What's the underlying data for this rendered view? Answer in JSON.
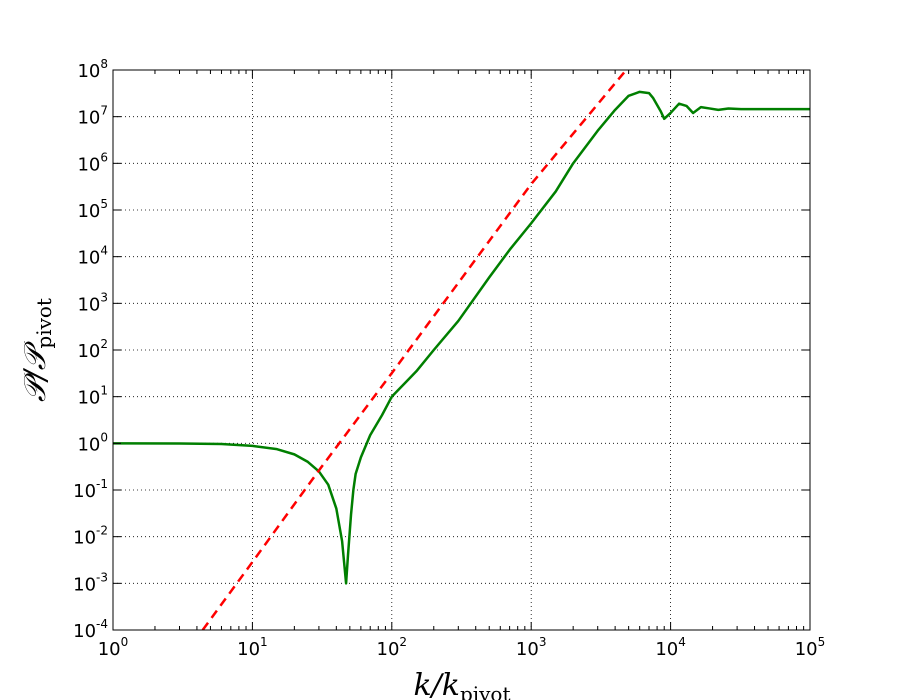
{
  "chart_data": {
    "type": "line",
    "title": "",
    "xlabel": {
      "main": "k/k",
      "sub": "pivot"
    },
    "ylabel": {
      "main": "𝒫/𝒫",
      "sub": "pivot"
    },
    "xscale": "log",
    "yscale": "log",
    "xlim": [
      1,
      100000
    ],
    "ylim": [
      0.0001,
      100000000
    ],
    "grid": true,
    "legend": "none",
    "x_ticks": [
      {
        "base": "10",
        "exp": "0",
        "value": 1
      },
      {
        "base": "10",
        "exp": "1",
        "value": 10
      },
      {
        "base": "10",
        "exp": "2",
        "value": 100
      },
      {
        "base": "10",
        "exp": "3",
        "value": 1000
      },
      {
        "base": "10",
        "exp": "4",
        "value": 10000
      },
      {
        "base": "10",
        "exp": "5",
        "value": 100000
      }
    ],
    "y_ticks": [
      {
        "base": "10",
        "exp": "-4",
        "value": 0.0001
      },
      {
        "base": "10",
        "exp": "-3",
        "value": 0.001
      },
      {
        "base": "10",
        "exp": "-2",
        "value": 0.01
      },
      {
        "base": "10",
        "exp": "-1",
        "value": 0.1
      },
      {
        "base": "10",
        "exp": "0",
        "value": 1
      },
      {
        "base": "10",
        "exp": "1",
        "value": 10
      },
      {
        "base": "10",
        "exp": "2",
        "value": 100
      },
      {
        "base": "10",
        "exp": "3",
        "value": 1000
      },
      {
        "base": "10",
        "exp": "4",
        "value": 10000
      },
      {
        "base": "10",
        "exp": "5",
        "value": 100000
      },
      {
        "base": "10",
        "exp": "6",
        "value": 1000000
      },
      {
        "base": "10",
        "exp": "7",
        "value": 10000000
      },
      {
        "base": "10",
        "exp": "8",
        "value": 100000000
      }
    ],
    "series": [
      {
        "color": "#007f00",
        "style": "solid",
        "points": [
          [
            1,
            1.0
          ],
          [
            3,
            0.99
          ],
          [
            6,
            0.97
          ],
          [
            10,
            0.88
          ],
          [
            15,
            0.75
          ],
          [
            20,
            0.58
          ],
          [
            25,
            0.4
          ],
          [
            30,
            0.25
          ],
          [
            35,
            0.13
          ],
          [
            40,
            0.04
          ],
          [
            44,
            0.008
          ],
          [
            47,
            0.001
          ],
          [
            48.5,
            0.004
          ],
          [
            51,
            0.03
          ],
          [
            53,
            0.1
          ],
          [
            55,
            0.22
          ],
          [
            60,
            0.5
          ],
          [
            70,
            1.5
          ],
          [
            85,
            4
          ],
          [
            100,
            10
          ],
          [
            150,
            35
          ],
          [
            200,
            100
          ],
          [
            300,
            420
          ],
          [
            500,
            3600
          ],
          [
            700,
            14000
          ],
          [
            1000,
            52000
          ],
          [
            1500,
            250000
          ],
          [
            2000,
            1000000
          ],
          [
            3000,
            5000000
          ],
          [
            4000,
            14000000
          ],
          [
            5000,
            28000000
          ],
          [
            6000,
            34000000
          ],
          [
            7000,
            32000000
          ],
          [
            7500,
            25000000
          ],
          [
            8500,
            13000000
          ],
          [
            9000,
            9000000
          ],
          [
            10000,
            12000000
          ],
          [
            11500,
            19000000
          ],
          [
            13000,
            17000000
          ],
          [
            14500,
            12000000
          ],
          [
            16500,
            16000000
          ],
          [
            19000,
            15000000
          ],
          [
            22000,
            14000000
          ],
          [
            26000,
            15000000
          ],
          [
            32000,
            14500000
          ],
          [
            40000,
            14500000
          ],
          [
            60000,
            14500000
          ],
          [
            100000,
            14500000
          ]
        ]
      },
      {
        "color": "#ff0000",
        "style": "dashed",
        "points": [
          [
            4.4,
            0.0001
          ],
          [
            10,
            0.00286
          ],
          [
            31,
            0.3
          ],
          [
            100,
            32
          ],
          [
            1000,
            360000
          ],
          [
            4800,
            100000000
          ]
        ]
      }
    ]
  }
}
